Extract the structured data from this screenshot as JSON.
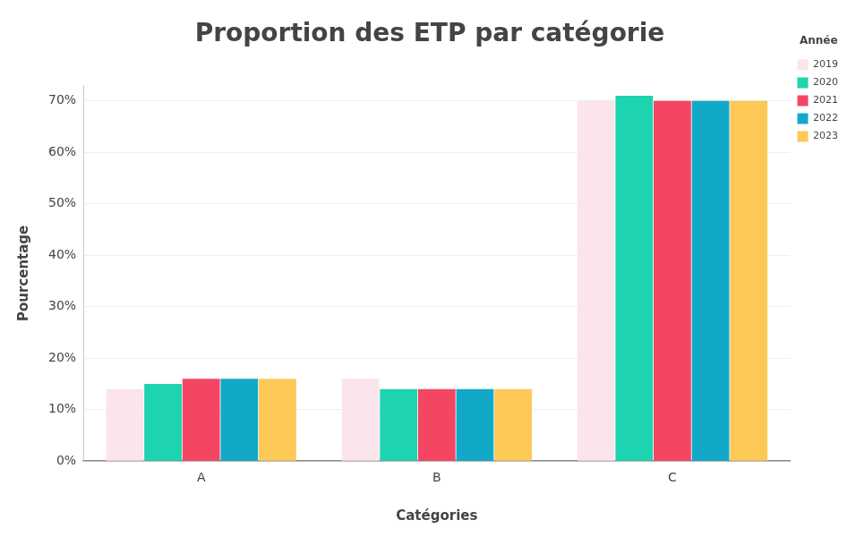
{
  "chart_data": {
    "type": "bar",
    "title": "Proportion des ETP par catégorie",
    "x_label": "Catégories",
    "y_label": "Pourcentage",
    "legend_title": "Année",
    "legend": "upper right",
    "grid": true,
    "categories": [
      "A",
      "B",
      "C"
    ],
    "series": [
      {
        "name": "2019",
        "color": "#fce4ec",
        "values": [
          14,
          16,
          70
        ]
      },
      {
        "name": "2020",
        "color": "#1dd3b0",
        "values": [
          15,
          14,
          71
        ]
      },
      {
        "name": "2021",
        "color": "#f44562",
        "values": [
          16,
          14,
          70
        ]
      },
      {
        "name": "2022",
        "color": "#12a9c9",
        "values": [
          16,
          14,
          70
        ]
      },
      {
        "name": "2023",
        "color": "#fdc856",
        "values": [
          16,
          14,
          70
        ]
      }
    ],
    "ylim": [
      0,
      73
    ],
    "yticks": [
      {
        "value": 0,
        "label": "0%"
      },
      {
        "value": 10,
        "label": "10%"
      },
      {
        "value": 20,
        "label": "20%"
      },
      {
        "value": 30,
        "label": "30%"
      },
      {
        "value": 40,
        "label": "40%"
      },
      {
        "value": 50,
        "label": "50%"
      },
      {
        "value": 60,
        "label": "60%"
      },
      {
        "value": 70,
        "label": "70%"
      }
    ]
  }
}
